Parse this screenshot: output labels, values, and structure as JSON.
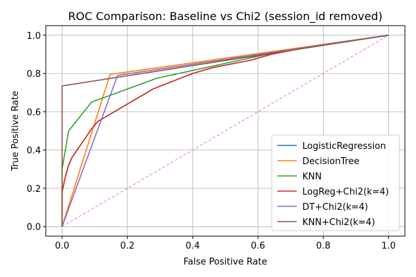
{
  "chart_data": {
    "type": "line",
    "title": "ROC Comparison: Baseline vs Chi2 (session_id removed)",
    "xlabel": "False Positive Rate",
    "ylabel": "True Positive Rate",
    "xlim": [
      -0.05,
      1.05
    ],
    "ylim": [
      -0.05,
      1.05
    ],
    "xticks": [
      "0.0",
      "0.2",
      "0.4",
      "0.6",
      "0.8",
      "1.0"
    ],
    "yticks": [
      "0.0",
      "0.2",
      "0.4",
      "0.6",
      "0.8",
      "1.0"
    ],
    "grid": true,
    "legend_position": "lower-right",
    "series": [
      {
        "name": "LogisticRegression",
        "color": "#1f77b4",
        "points": [
          [
            0,
            0
          ],
          [
            0,
            0.19
          ],
          [
            0.005,
            0.22
          ],
          [
            0.01,
            0.26
          ],
          [
            0.02,
            0.32
          ],
          [
            0.03,
            0.36
          ],
          [
            0.05,
            0.41
          ],
          [
            0.07,
            0.46
          ],
          [
            0.09,
            0.51
          ],
          [
            0.11,
            0.55
          ],
          [
            0.14,
            0.58
          ],
          [
            0.18,
            0.62
          ],
          [
            0.22,
            0.66
          ],
          [
            0.28,
            0.72
          ],
          [
            0.34,
            0.76
          ],
          [
            0.4,
            0.8
          ],
          [
            0.46,
            0.83
          ],
          [
            0.52,
            0.85
          ],
          [
            0.58,
            0.87
          ],
          [
            0.64,
            0.9
          ],
          [
            0.7,
            0.92
          ],
          [
            0.8,
            0.95
          ],
          [
            0.9,
            0.975
          ],
          [
            1,
            1
          ]
        ]
      },
      {
        "name": "DecisionTree",
        "color": "#ff7f0e",
        "points": [
          [
            0,
            0
          ],
          [
            0.147,
            0.795
          ],
          [
            1,
            1
          ]
        ]
      },
      {
        "name": "KNN",
        "color": "#2ca02c",
        "points": [
          [
            0,
            0
          ],
          [
            0,
            0.3
          ],
          [
            0.02,
            0.5
          ],
          [
            0.09,
            0.65
          ],
          [
            0.29,
            0.775
          ],
          [
            0.64,
            0.905
          ],
          [
            1,
            1
          ]
        ]
      },
      {
        "name": "LogReg+Chi2(k=4)",
        "color": "#d62728",
        "points": [
          [
            0,
            0
          ],
          [
            0,
            0.18
          ],
          [
            0.005,
            0.22
          ],
          [
            0.01,
            0.26
          ],
          [
            0.02,
            0.32
          ],
          [
            0.03,
            0.36
          ],
          [
            0.05,
            0.41
          ],
          [
            0.07,
            0.46
          ],
          [
            0.09,
            0.51
          ],
          [
            0.11,
            0.55
          ],
          [
            0.14,
            0.58
          ],
          [
            0.18,
            0.62
          ],
          [
            0.22,
            0.66
          ],
          [
            0.28,
            0.72
          ],
          [
            0.34,
            0.76
          ],
          [
            0.4,
            0.8
          ],
          [
            0.46,
            0.83
          ],
          [
            0.52,
            0.85
          ],
          [
            0.58,
            0.87
          ],
          [
            0.64,
            0.9
          ],
          [
            0.7,
            0.92
          ],
          [
            0.8,
            0.95
          ],
          [
            0.9,
            0.975
          ],
          [
            1,
            1
          ]
        ]
      },
      {
        "name": "DT+Chi2(k=4)",
        "color": "#9467bd",
        "points": [
          [
            0,
            0
          ],
          [
            0.17,
            0.79
          ],
          [
            1,
            1
          ]
        ]
      },
      {
        "name": "KNN+Chi2(k=4)",
        "color": "#8c564b",
        "points": [
          [
            0,
            0
          ],
          [
            0,
            0.735
          ],
          [
            1,
            1
          ]
        ]
      }
    ],
    "reference_line": {
      "color": "#e377c2",
      "style": "dashed",
      "points": [
        [
          0,
          0
        ],
        [
          1,
          1
        ]
      ]
    }
  }
}
